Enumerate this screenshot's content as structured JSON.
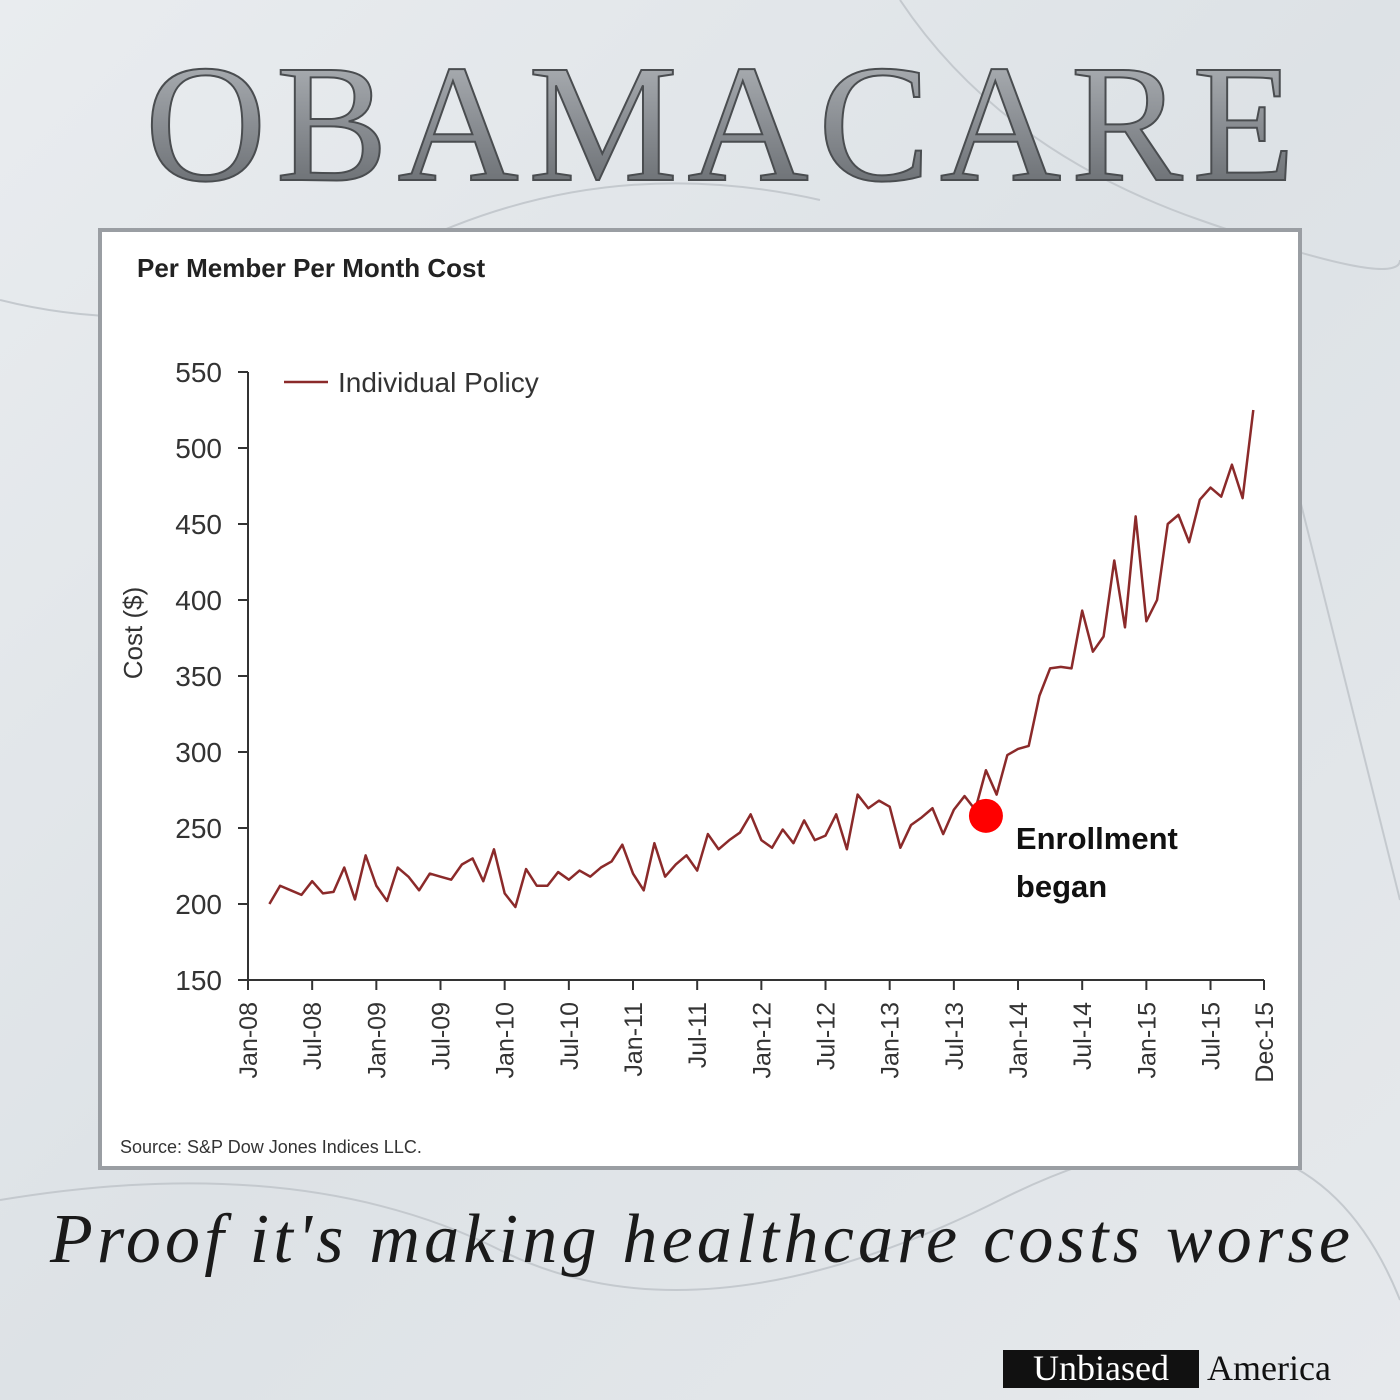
{
  "header": {
    "title": "OBAMACARE"
  },
  "chart_data": {
    "type": "line",
    "title": "Per Member Per Month Cost",
    "ylabel": "Cost ($)",
    "source": "Source: S&P Dow Jones Indices LLC.",
    "x": [
      "2008-03",
      "2008-04",
      "2008-05",
      "2008-06",
      "2008-07",
      "2008-08",
      "2008-09",
      "2008-10",
      "2008-11",
      "2008-12",
      "2009-01",
      "2009-02",
      "2009-03",
      "2009-04",
      "2009-05",
      "2009-06",
      "2009-07",
      "2009-08",
      "2009-09",
      "2009-10",
      "2009-11",
      "2009-12",
      "2010-01",
      "2010-02",
      "2010-03",
      "2010-04",
      "2010-05",
      "2010-06",
      "2010-07",
      "2010-08",
      "2010-09",
      "2010-10",
      "2010-11",
      "2010-12",
      "2011-01",
      "2011-02",
      "2011-03",
      "2011-04",
      "2011-05",
      "2011-06",
      "2011-07",
      "2011-08",
      "2011-09",
      "2011-10",
      "2011-11",
      "2011-12",
      "2012-01",
      "2012-02",
      "2012-03",
      "2012-04",
      "2012-05",
      "2012-06",
      "2012-07",
      "2012-08",
      "2012-09",
      "2012-10",
      "2012-11",
      "2012-12",
      "2013-01",
      "2013-02",
      "2013-03",
      "2013-04",
      "2013-05",
      "2013-06",
      "2013-07",
      "2013-08",
      "2013-09",
      "2013-10",
      "2013-11",
      "2013-12",
      "2014-01",
      "2014-02",
      "2014-03",
      "2014-04",
      "2014-05",
      "2014-06",
      "2014-07",
      "2014-08",
      "2014-09",
      "2014-10",
      "2014-11",
      "2014-12",
      "2015-01",
      "2015-02",
      "2015-03",
      "2015-04",
      "2015-05",
      "2015-06",
      "2015-07",
      "2015-08",
      "2015-09",
      "2015-10",
      "2015-11"
    ],
    "series": [
      {
        "name": "Individual Policy",
        "color": "#8b2a2a",
        "values": [
          200,
          212,
          209,
          206,
          215,
          207,
          208,
          224,
          203,
          232,
          212,
          202,
          224,
          218,
          209,
          220,
          218,
          216,
          226,
          230,
          215,
          236,
          207,
          198,
          223,
          212,
          212,
          221,
          216,
          222,
          218,
          224,
          228,
          239,
          220,
          209,
          240,
          218,
          226,
          232,
          222,
          246,
          236,
          242,
          247,
          259,
          242,
          237,
          249,
          240,
          255,
          242,
          245,
          259,
          236,
          272,
          263,
          268,
          264,
          237,
          252,
          257,
          263,
          246,
          262,
          271,
          262,
          288,
          272,
          298,
          302,
          304,
          337,
          355,
          356,
          355,
          393,
          366,
          376,
          426,
          382,
          455,
          386,
          400,
          450,
          456,
          438,
          466,
          474,
          468,
          489,
          467,
          525
        ]
      }
    ],
    "xlim": [
      "2008-01",
      "2015-12"
    ],
    "xticks": [
      {
        "value": "2008-01",
        "label": "Jan-08"
      },
      {
        "value": "2008-07",
        "label": "Jul-08"
      },
      {
        "value": "2009-01",
        "label": "Jan-09"
      },
      {
        "value": "2009-07",
        "label": "Jul-09"
      },
      {
        "value": "2010-01",
        "label": "Jan-10"
      },
      {
        "value": "2010-07",
        "label": "Jul-10"
      },
      {
        "value": "2011-01",
        "label": "Jan-11"
      },
      {
        "value": "2011-07",
        "label": "Jul-11"
      },
      {
        "value": "2012-01",
        "label": "Jan-12"
      },
      {
        "value": "2012-07",
        "label": "Jul-12"
      },
      {
        "value": "2013-01",
        "label": "Jan-13"
      },
      {
        "value": "2013-07",
        "label": "Jul-13"
      },
      {
        "value": "2014-01",
        "label": "Jan-14"
      },
      {
        "value": "2014-07",
        "label": "Jul-14"
      },
      {
        "value": "2015-01",
        "label": "Jan-15"
      },
      {
        "value": "2015-07",
        "label": "Jul-15"
      },
      {
        "value": "2015-12",
        "label": "Dec-15"
      }
    ],
    "ylim": [
      150,
      550
    ],
    "yticks": [
      150,
      200,
      250,
      300,
      350,
      400,
      450,
      500,
      550
    ],
    "legend": "top-left",
    "annotation": {
      "lines": [
        "Enrollment",
        "began"
      ],
      "x": "2013-10",
      "y": 258,
      "color": "#ff0000"
    }
  },
  "footer": {
    "caption": "Proof it's making healthcare costs worse",
    "brand_dark": "Unbiased",
    "brand_light": "America"
  }
}
